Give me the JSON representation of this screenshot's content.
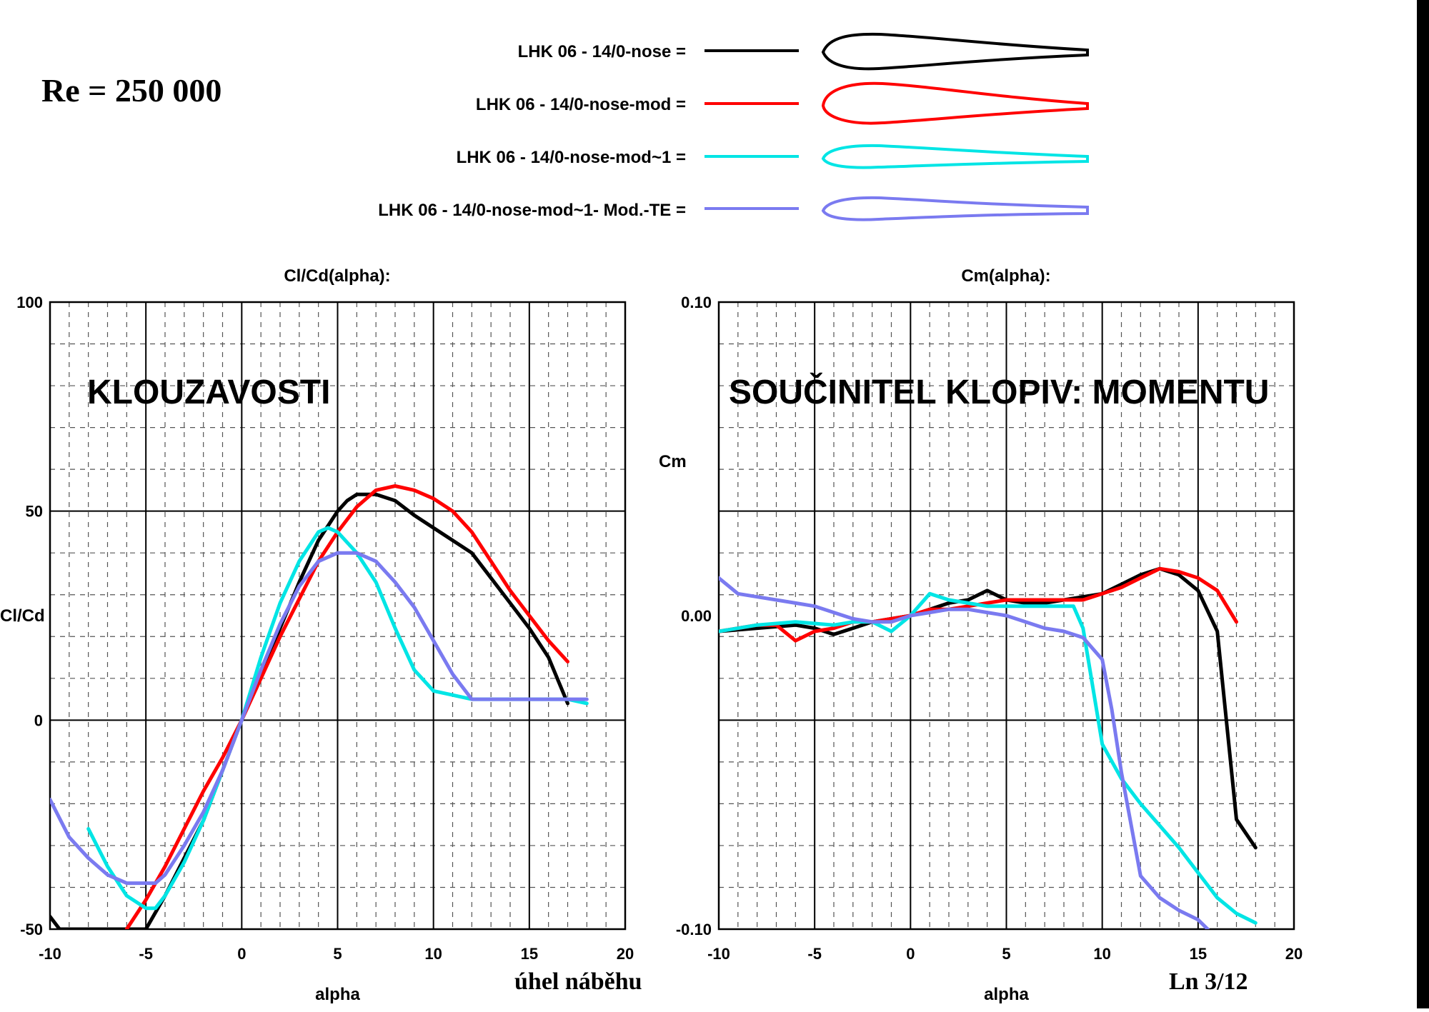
{
  "reynolds_label": "Re = 250 000",
  "bottom_label": "úhel  náběhu",
  "page_label": "Ln 3/12",
  "legend": [
    {
      "label": "LHK   06  -  14/0-nose =",
      "color": "#000000"
    },
    {
      "label": "LHK   06  -  14/0-nose-mod =",
      "color": "#ff0000"
    },
    {
      "label": "LHK   06  -  14/0-nose-mod~1 =",
      "color": "#00e5e5"
    },
    {
      "label": "LHK   06  -  14/0-nose-mod~1- Mod.-TE =",
      "color": "#7a7af0"
    }
  ],
  "chart_data": [
    {
      "type": "line",
      "title": "Cl/Cd(alpha):",
      "overlay_title": "KLOUZAVOSTI",
      "xlabel": "alpha",
      "ylabel": "Cl/Cd",
      "xlim": [
        -10,
        20
      ],
      "ylim": [
        -50,
        100
      ],
      "xticks": [
        "-10",
        "-5",
        "0",
        "5",
        "10",
        "15",
        "20"
      ],
      "yticks": [
        "100",
        "50",
        "0",
        "-50"
      ],
      "series": [
        {
          "name": "LHK   06  -  14/0-nose",
          "color": "#000000",
          "x": [
            -10,
            -9.5,
            -5,
            -4,
            -3,
            -2,
            -1,
            0,
            1,
            2,
            3,
            4,
            5,
            5.5,
            6,
            7,
            8,
            9,
            10,
            11,
            12,
            13,
            14,
            15,
            16,
            17
          ],
          "y": [
            -47,
            -50,
            -50,
            -42,
            -33,
            -24,
            -12,
            0,
            11,
            22,
            33,
            43,
            50,
            52.5,
            54,
            54,
            52.5,
            49,
            46,
            43,
            40,
            34,
            28,
            22,
            15,
            4
          ]
        },
        {
          "name": "LHK   06  -  14/0-nose-mod",
          "color": "#ff0000",
          "x": [
            -6,
            -5,
            -4,
            -3,
            -2,
            -1,
            0,
            1,
            2,
            3,
            4,
            5,
            6,
            7,
            8,
            9,
            10,
            11,
            12,
            13,
            14,
            15,
            16,
            17
          ],
          "y": [
            -50,
            -43,
            -35,
            -26,
            -17,
            -9,
            0,
            10,
            20,
            29,
            38,
            45,
            51,
            55,
            56,
            55,
            53,
            50,
            45,
            38,
            31,
            25,
            19,
            14
          ]
        },
        {
          "name": "LHK   06  -  14/0-nose-mod~1",
          "color": "#00e5e5",
          "x": [
            -8,
            -7,
            -6,
            -5,
            -4.5,
            -4,
            -3,
            -2,
            -1,
            0,
            1,
            2,
            3,
            4,
            4.5,
            5,
            6,
            7,
            8,
            9,
            10,
            11,
            12,
            13,
            14,
            15,
            16,
            17,
            18
          ],
          "y": [
            -26,
            -35,
            -42,
            -45,
            -45,
            -42,
            -34,
            -24,
            -12,
            0,
            15,
            28,
            38,
            45,
            46,
            45,
            40,
            33,
            22,
            12,
            7,
            6,
            5,
            5,
            5,
            5,
            5,
            5,
            4
          ]
        },
        {
          "name": "LHK   06  -  14/0-nose-mod~1- Mod.-TE",
          "color": "#7a7af0",
          "x": [
            -10,
            -9,
            -8,
            -7,
            -6,
            -5,
            -4.5,
            -4,
            -3,
            -2,
            -1,
            0,
            1,
            2,
            3,
            4,
            5,
            6,
            7,
            8,
            9,
            10,
            11,
            12,
            13,
            14,
            15,
            16,
            17,
            18
          ],
          "y": [
            -19,
            -28,
            -33,
            -37,
            -39,
            -39,
            -39,
            -37,
            -30,
            -22,
            -12,
            0,
            12,
            23,
            32,
            38,
            40,
            40,
            38,
            33,
            27,
            19,
            11,
            5,
            5,
            5,
            5,
            5,
            5,
            5
          ]
        }
      ]
    },
    {
      "type": "line",
      "title": "Cm(alpha):",
      "overlay_title": "SOUČINITEL  KLOPIV: MOMENTU",
      "xlabel": "alpha",
      "ylabel": "Cm",
      "xlim": [
        -10,
        20
      ],
      "ylim": [
        -0.1,
        0.1
      ],
      "xticks": [
        "-10",
        "-5",
        "0",
        "5",
        "10",
        "15",
        "20"
      ],
      "yticks": [
        "0.10",
        "0.00",
        "-0.10"
      ],
      "series": [
        {
          "name": "LHK   06  -  14/0-nose",
          "color": "#000000",
          "x": [
            -10,
            -8,
            -6,
            -5,
            -4,
            -3,
            -2,
            -1,
            0,
            1,
            2,
            3,
            4,
            5,
            6,
            7,
            8,
            9,
            10,
            11,
            12,
            13,
            14,
            15,
            16,
            16.5,
            17,
            18
          ],
          "y": [
            -0.005,
            -0.004,
            -0.003,
            -0.004,
            -0.006,
            -0.004,
            -0.002,
            -0.001,
            0.0,
            0.002,
            0.004,
            0.005,
            0.008,
            0.005,
            0.004,
            0.004,
            0.005,
            0.006,
            0.007,
            0.01,
            0.013,
            0.015,
            0.013,
            0.008,
            -0.005,
            -0.035,
            -0.065,
            -0.074
          ]
        },
        {
          "name": "LHK   06  -  14/0-nose-mod",
          "color": "#ff0000",
          "x": [
            -10,
            -9,
            -8,
            -7,
            -6,
            -5,
            -4,
            -3,
            -2,
            -1,
            0,
            1,
            2,
            3,
            4,
            5,
            6,
            7,
            8,
            9,
            10,
            11,
            12,
            13,
            14,
            15,
            16,
            17
          ],
          "y": [
            -0.005,
            -0.004,
            -0.003,
            -0.003,
            -0.008,
            -0.005,
            -0.004,
            -0.002,
            -0.002,
            -0.001,
            0.0,
            0.002,
            0.002,
            0.003,
            0.004,
            0.005,
            0.005,
            0.005,
            0.005,
            0.005,
            0.007,
            0.009,
            0.012,
            0.015,
            0.014,
            0.012,
            0.008,
            -0.002
          ]
        },
        {
          "name": "LHK   06  -  14/0-nose-mod~1",
          "color": "#00e5e5",
          "x": [
            -10,
            -8,
            -6,
            -4,
            -3,
            -2,
            -1,
            0,
            1,
            2,
            3,
            4,
            5,
            6,
            7,
            8,
            8.5,
            9,
            10,
            11,
            12,
            13,
            14,
            15,
            16,
            17,
            18
          ],
          "y": [
            -0.005,
            -0.003,
            -0.002,
            -0.003,
            -0.002,
            -0.002,
            -0.005,
            0.0,
            0.007,
            0.005,
            0.004,
            0.003,
            0.003,
            0.003,
            0.003,
            0.003,
            0.003,
            -0.004,
            -0.041,
            -0.052,
            -0.06,
            -0.067,
            -0.074,
            -0.082,
            -0.09,
            -0.095,
            -0.098
          ]
        },
        {
          "name": "LHK   06  -  14/0-nose-mod~1- Mod.-TE",
          "color": "#7a7af0",
          "x": [
            -10,
            -9,
            -8,
            -6,
            -5,
            -4,
            -3,
            -2,
            -1,
            0,
            1,
            2,
            3,
            4,
            5,
            6,
            7,
            8,
            9,
            10,
            10.5,
            11,
            12,
            13,
            14,
            15,
            15.5
          ],
          "y": [
            0.012,
            0.007,
            0.006,
            0.004,
            0.003,
            0.001,
            -0.001,
            -0.002,
            -0.002,
            0.0,
            0.001,
            0.002,
            0.002,
            0.001,
            0.0,
            -0.002,
            -0.004,
            -0.005,
            -0.007,
            -0.014,
            -0.03,
            -0.05,
            -0.083,
            -0.09,
            -0.094,
            -0.097,
            -0.1
          ]
        }
      ]
    }
  ]
}
